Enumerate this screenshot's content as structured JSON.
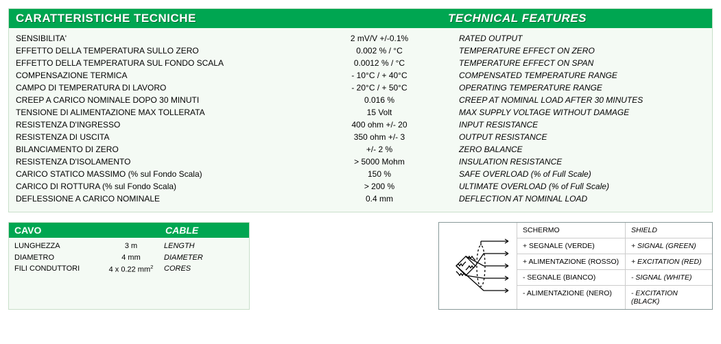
{
  "colors": {
    "green": "#00a651",
    "panel_bg": "#f4faf4",
    "panel_border": "#c9dfca",
    "wiring_border": "#899",
    "cell_border": "#ccc"
  },
  "tech": {
    "header_it": "CARATTERISTICHE TECNICHE",
    "header_en": "TECHNICAL FEATURES",
    "rows": [
      {
        "it": "SENSIBILITA'",
        "val": "2 mV/V  +/-0.1%",
        "en": "RATED OUTPUT"
      },
      {
        "it": "EFFETTO DELLA TEMPERATURA SULLO ZERO",
        "val": "0.002 % / °C",
        "en": "TEMPERATURE EFFECT ON ZERO"
      },
      {
        "it": "EFFETTO DELLA TEMPERATURA SUL FONDO SCALA",
        "val": "0.0012 % / °C",
        "en": "TEMPERATURE EFFECT ON SPAN"
      },
      {
        "it": "COMPENSAZIONE TERMICA",
        "val": "- 10°C / + 40°C",
        "en": "COMPENSATED TEMPERATURE RANGE"
      },
      {
        "it": "CAMPO DI TEMPERATURA DI LAVORO",
        "val": "- 20°C / + 50°C",
        "en": "OPERATING TEMPERATURE RANGE"
      },
      {
        "it": "CREEP A CARICO NOMINALE DOPO 30 MINUTI",
        "val": "0.016 %",
        "en": "CREEP AT NOMINAL LOAD AFTER 30 MINUTES"
      },
      {
        "it": "TENSIONE DI ALIMENTAZIONE MAX TOLLERATA",
        "val": "15 Volt",
        "en": "MAX SUPPLY VOLTAGE WITHOUT DAMAGE"
      },
      {
        "it": "RESISTENZA D'INGRESSO",
        "val": "400 ohm +/- 20",
        "en": "INPUT RESISTANCE"
      },
      {
        "it": "RESISTENZA DI USCITA",
        "val": "350 ohm +/- 3",
        "en": "OUTPUT RESISTANCE"
      },
      {
        "it": "BILANCIAMENTO DI ZERO",
        "val": "+/- 2 %",
        "en": "ZERO BALANCE"
      },
      {
        "it": "RESISTENZA D'ISOLAMENTO",
        "val": "> 5000 Mohm",
        "en": "INSULATION RESISTANCE"
      },
      {
        "it": "CARICO STATICO MASSIMO (% sul Fondo Scala)",
        "val": "150 %",
        "en": "SAFE OVERLOAD (% of  Full Scale)"
      },
      {
        "it": "CARICO DI ROTTURA (% sul Fondo Scala)",
        "val": "> 200 %",
        "en": "ULTIMATE OVERLOAD (% of  Full Scale)"
      },
      {
        "it": "DEFLESSIONE A CARICO NOMINALE",
        "val": "0.4 mm",
        "en": "DEFLECTION AT NOMINAL LOAD"
      }
    ]
  },
  "cable": {
    "header_it": "CAVO",
    "header_en": "CABLE",
    "rows": [
      {
        "it": "LUNGHEZZA",
        "val": "3 m",
        "en": "LENGTH"
      },
      {
        "it": "DIAMETRO",
        "val": "4 mm",
        "en": "DIAMETER"
      },
      {
        "it": "FILI CONDUTTORI",
        "val_html": "4 x 0.22 mm<sup>2</sup>",
        "en": "CORES"
      }
    ]
  },
  "wiring": {
    "rows": [
      {
        "it": "SCHERMO",
        "en": "SHIELD"
      },
      {
        "it": "+ SEGNALE (VERDE)",
        "en": "+ SIGNAL (GREEN)"
      },
      {
        "it": "+ ALIMENTAZIONE (ROSSO)",
        "en": "+ EXCITATION (RED)"
      },
      {
        "it": "- SEGNALE (BIANCO)",
        "en": "- SIGNAL (WHITE)"
      },
      {
        "it": "- ALIMENTAZIONE (NERO)",
        "en": "- EXCITATION (BLACK)"
      }
    ]
  }
}
